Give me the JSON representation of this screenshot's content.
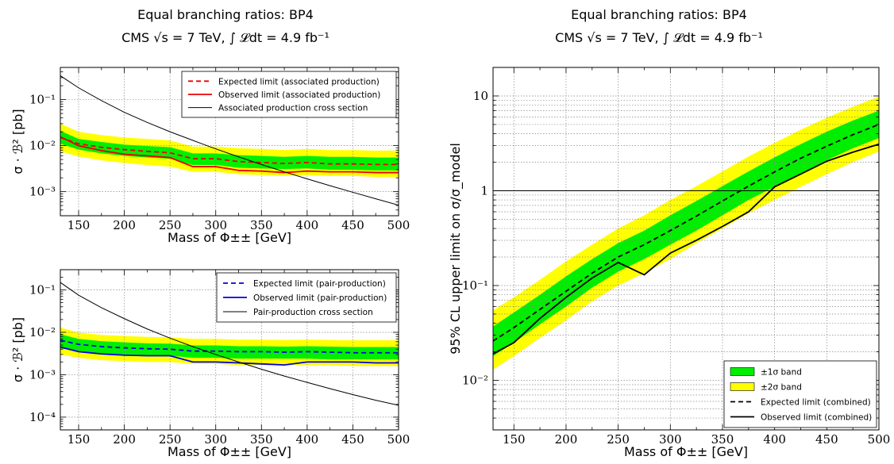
{
  "header": {
    "title": "Equal branching ratios: BP4",
    "subtitle": "CMS √s = 7 TeV, ∫ 𝓛dt = 4.9 fb⁻¹"
  },
  "colors": {
    "band1": "#00ee00",
    "band2": "#ffff00",
    "red": "#ee0000",
    "blue": "#0000dd",
    "black": "#000000",
    "grid": "#888888"
  },
  "chart_data": [
    {
      "id": "tl",
      "type": "line",
      "title": "Equal branching ratios: BP4",
      "subtitle": "CMS √s = 7 TeV, ∫ 𝓛dt = 4.9 fb⁻¹",
      "xlabel": "Mass of Φ±± [GeV]",
      "ylabel": "σ · ℬ² [pb]",
      "xlim": [
        130,
        500
      ],
      "ylim": [
        0.0003,
        0.5
      ],
      "yscale": "log",
      "grid": true,
      "xticks": [
        150,
        200,
        250,
        300,
        350,
        400,
        450,
        500
      ],
      "yticks": [
        {
          "value": 0.1,
          "label": "10⁻¹"
        },
        {
          "value": 0.01,
          "label": "10⁻²"
        },
        {
          "value": 0.001,
          "label": "10⁻³"
        }
      ],
      "legend_position": "top-right",
      "x": [
        130,
        150,
        175,
        200,
        225,
        250,
        275,
        300,
        325,
        350,
        375,
        400,
        425,
        450,
        475,
        500
      ],
      "bands": {
        "two_sigma_low": [
          0.0075,
          0.0058,
          0.0048,
          0.0042,
          0.0038,
          0.0035,
          0.0027,
          0.0027,
          0.0024,
          0.0023,
          0.0022,
          0.0023,
          0.0022,
          0.0022,
          0.0021,
          0.0021
        ],
        "one_sigma_low": [
          0.011,
          0.0082,
          0.0068,
          0.006,
          0.0055,
          0.0052,
          0.0038,
          0.0038,
          0.0033,
          0.0032,
          0.0031,
          0.0032,
          0.003,
          0.003,
          0.0029,
          0.0029
        ],
        "one_sigma_high": [
          0.021,
          0.014,
          0.012,
          0.0105,
          0.0098,
          0.0093,
          0.0068,
          0.0068,
          0.0062,
          0.006,
          0.0057,
          0.006,
          0.0057,
          0.0057,
          0.0055,
          0.0055
        ],
        "two_sigma_high": [
          0.03,
          0.02,
          0.017,
          0.015,
          0.014,
          0.013,
          0.0095,
          0.0095,
          0.0088,
          0.0085,
          0.008,
          0.0085,
          0.008,
          0.008,
          0.0078,
          0.0078
        ]
      },
      "series": [
        {
          "name": "Expected limit (associated production)",
          "style": "dashed",
          "color": "#ee0000",
          "values": [
            0.015,
            0.011,
            0.0092,
            0.0082,
            0.0075,
            0.007,
            0.0052,
            0.0052,
            0.0045,
            0.0043,
            0.0041,
            0.0043,
            0.004,
            0.004,
            0.0039,
            0.0039
          ]
        },
        {
          "name": "Observed limit (associated production)",
          "style": "solid",
          "color": "#ee0000",
          "values": [
            0.0155,
            0.01,
            0.0078,
            0.0065,
            0.006,
            0.0055,
            0.0035,
            0.0035,
            0.0029,
            0.0028,
            0.0026,
            0.0028,
            0.0027,
            0.0027,
            0.0026,
            0.0026
          ]
        },
        {
          "name": "Associated production cross section",
          "style": "thin",
          "color": "#000000",
          "values": [
            0.33,
            0.18,
            0.095,
            0.053,
            0.032,
            0.02,
            0.013,
            0.0085,
            0.0057,
            0.0039,
            0.0027,
            0.0019,
            0.00135,
            0.00097,
            0.0007,
            0.00051
          ]
        }
      ]
    },
    {
      "id": "bl",
      "type": "line",
      "xlabel": "Mass of Φ±± [GeV]",
      "ylabel": "σ · ℬ² [pb]",
      "xlim": [
        130,
        500
      ],
      "ylim": [
        5e-05,
        0.3
      ],
      "yscale": "log",
      "grid": true,
      "xticks": [
        150,
        200,
        250,
        300,
        350,
        400,
        450,
        500
      ],
      "yticks": [
        {
          "value": 0.1,
          "label": "10⁻¹"
        },
        {
          "value": 0.01,
          "label": "10⁻²"
        },
        {
          "value": 0.001,
          "label": "10⁻³"
        },
        {
          "value": 0.0001,
          "label": "10⁻⁴"
        }
      ],
      "legend_position": "top-right",
      "x": [
        130,
        150,
        175,
        200,
        225,
        250,
        275,
        300,
        325,
        350,
        375,
        400,
        425,
        450,
        475,
        500
      ],
      "bands": {
        "two_sigma_low": [
          0.003,
          0.0025,
          0.0022,
          0.0021,
          0.002,
          0.002,
          0.0018,
          0.0018,
          0.0017,
          0.0017,
          0.0017,
          0.0017,
          0.0017,
          0.0016,
          0.0016,
          0.0016
        ],
        "one_sigma_low": [
          0.0042,
          0.0036,
          0.0032,
          0.003,
          0.0029,
          0.0028,
          0.0025,
          0.0025,
          0.0024,
          0.0024,
          0.0024,
          0.0024,
          0.0023,
          0.0023,
          0.0023,
          0.0023
        ],
        "one_sigma_high": [
          0.009,
          0.007,
          0.0062,
          0.0058,
          0.0055,
          0.0054,
          0.0049,
          0.0049,
          0.0047,
          0.0047,
          0.0046,
          0.0047,
          0.0046,
          0.0045,
          0.0045,
          0.0045
        ],
        "two_sigma_high": [
          0.013,
          0.0098,
          0.0087,
          0.0082,
          0.0078,
          0.0076,
          0.007,
          0.007,
          0.0067,
          0.0067,
          0.0066,
          0.0067,
          0.0066,
          0.0065,
          0.0065,
          0.0065
        ]
      },
      "series": [
        {
          "name": "Expected limit (pair-production)",
          "style": "dashed",
          "color": "#0000dd",
          "values": [
            0.0065,
            0.0052,
            0.0046,
            0.0043,
            0.0041,
            0.004,
            0.0036,
            0.0036,
            0.0035,
            0.0035,
            0.0034,
            0.0035,
            0.0034,
            0.0033,
            0.0033,
            0.0033
          ]
        },
        {
          "name": "Observed limit (pair-production)",
          "style": "solid",
          "color": "#0000dd",
          "values": [
            0.0045,
            0.0035,
            0.0031,
            0.0029,
            0.0028,
            0.0028,
            0.002,
            0.002,
            0.0019,
            0.0018,
            0.0017,
            0.002,
            0.002,
            0.002,
            0.0019,
            0.0019
          ]
        },
        {
          "name": "Pair-production cross section",
          "style": "thin",
          "color": "#000000",
          "values": [
            0.15,
            0.075,
            0.038,
            0.021,
            0.012,
            0.0073,
            0.0046,
            0.003,
            0.002,
            0.00135,
            0.00093,
            0.00066,
            0.00047,
            0.00034,
            0.00025,
            0.00019
          ]
        }
      ]
    },
    {
      "id": "r",
      "type": "line",
      "title": "Equal branching ratios: BP4",
      "subtitle": "CMS √s = 7 TeV, ∫ 𝓛dt = 4.9 fb⁻¹",
      "xlabel": "Mass of Φ±± [GeV]",
      "ylabel": "95% CL upper limit on σ/σ_model",
      "xlim": [
        130,
        500
      ],
      "ylim": [
        0.003,
        20
      ],
      "yscale": "log",
      "grid": true,
      "xticks": [
        150,
        200,
        250,
        300,
        350,
        400,
        450,
        500
      ],
      "yticks": [
        {
          "value": 10,
          "label": "10"
        },
        {
          "value": 1,
          "label": "1"
        },
        {
          "value": 0.1,
          "label": "10⁻¹"
        },
        {
          "value": 0.01,
          "label": "10⁻²"
        }
      ],
      "reference_line": 1,
      "legend_position": "bottom-right",
      "x": [
        130,
        150,
        175,
        200,
        225,
        250,
        275,
        300,
        325,
        350,
        375,
        400,
        425,
        450,
        475,
        500
      ],
      "bands": {
        "two_sigma_low": [
          0.013,
          0.018,
          0.028,
          0.043,
          0.068,
          0.1,
          0.135,
          0.19,
          0.28,
          0.4,
          0.58,
          0.8,
          1.1,
          1.5,
          2.0,
          2.6
        ],
        "one_sigma_low": [
          0.018,
          0.025,
          0.039,
          0.06,
          0.095,
          0.14,
          0.19,
          0.27,
          0.38,
          0.55,
          0.8,
          1.1,
          1.5,
          2.1,
          2.8,
          3.6
        ],
        "one_sigma_high": [
          0.037,
          0.052,
          0.08,
          0.125,
          0.19,
          0.28,
          0.38,
          0.55,
          0.78,
          1.12,
          1.6,
          2.25,
          3.1,
          4.2,
          5.5,
          7.0
        ],
        "two_sigma_high": [
          0.055,
          0.075,
          0.115,
          0.18,
          0.27,
          0.4,
          0.55,
          0.8,
          1.12,
          1.6,
          2.3,
          3.2,
          4.4,
          5.9,
          7.7,
          9.8
        ]
      },
      "series": [
        {
          "name": "Expected limit (combined)",
          "style": "dashed",
          "color": "#000000",
          "values": [
            0.026,
            0.036,
            0.056,
            0.087,
            0.135,
            0.2,
            0.27,
            0.38,
            0.54,
            0.78,
            1.12,
            1.58,
            2.2,
            2.95,
            3.9,
            5.0
          ]
        },
        {
          "name": "Observed limit (combined)",
          "style": "solid",
          "color": "#000000",
          "values": [
            0.019,
            0.025,
            0.045,
            0.075,
            0.12,
            0.175,
            0.13,
            0.22,
            0.3,
            0.42,
            0.6,
            1.1,
            1.5,
            2.05,
            2.55,
            3.1
          ]
        }
      ],
      "band_labels": [
        "±1σ band",
        "±2σ band"
      ]
    }
  ]
}
